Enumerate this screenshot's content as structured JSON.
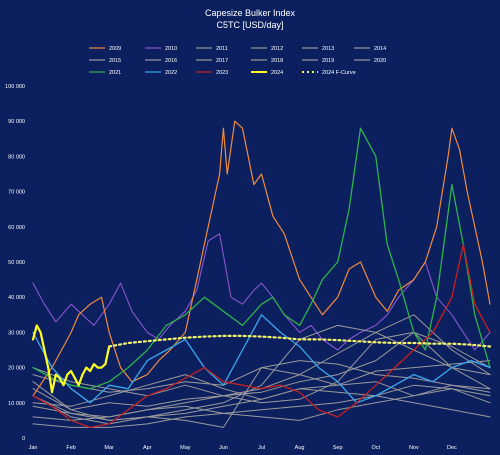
{
  "chart_data": {
    "type": "line",
    "title": "Capesize Bulker Index",
    "subtitle": "C5TC [USD/day]",
    "xlabel": "",
    "ylabel": "",
    "ylim": [
      0,
      100000
    ],
    "y_ticks": [
      0,
      10000,
      20000,
      30000,
      40000,
      50000,
      60000,
      70000,
      80000,
      90000,
      100000
    ],
    "y_tick_labels": [
      "0",
      "10 000",
      "20 000",
      "30 000",
      "40 000",
      "50 000",
      "60 000",
      "70 000",
      "80 000",
      "90 000",
      "100 000"
    ],
    "x_tick_labels": [
      "Jan",
      "Feb",
      "Mar",
      "Apr",
      "May",
      "Jun",
      "Jul",
      "Aug",
      "Sep",
      "Oct",
      "Nov",
      "Dec"
    ],
    "x_unit": "month (0 = start of Jan, 12 = end of Dec)",
    "grid": false,
    "legend_position": "top",
    "series": [
      {
        "name": "2009",
        "color": "#f08a3c",
        "width": 1.2,
        "dash": "",
        "x": [
          0,
          0.5,
          1,
          1.2,
          1.5,
          1.8,
          2,
          2.3,
          2.6,
          3,
          3.3,
          3.6,
          4,
          4.3,
          4.6,
          4.9,
          5,
          5.1,
          5.3,
          5.5,
          5.8,
          6,
          6.3,
          6.6,
          7,
          7.3,
          7.6,
          8,
          8.3,
          8.6,
          9,
          9.3,
          9.6,
          10,
          10.3,
          10.6,
          10.9,
          11,
          11.2,
          11.4,
          11.6,
          11.8,
          12
        ],
        "y": [
          12000,
          20000,
          30000,
          35000,
          38000,
          40000,
          30000,
          20000,
          16000,
          18000,
          22000,
          25000,
          30000,
          45000,
          60000,
          75000,
          88000,
          75000,
          90000,
          88000,
          72000,
          75000,
          63000,
          58000,
          45000,
          40000,
          35000,
          40000,
          48000,
          50000,
          40000,
          36000,
          42000,
          45000,
          50000,
          60000,
          80000,
          88000,
          82000,
          70000,
          60000,
          50000,
          38000
        ]
      },
      {
        "name": "2010",
        "color": "#8a55cf",
        "width": 1.1,
        "dash": "",
        "x": [
          0,
          0.3,
          0.6,
          1,
          1.3,
          1.6,
          2,
          2.3,
          2.6,
          3,
          3.3,
          3.6,
          4,
          4.3,
          4.6,
          4.9,
          5.2,
          5.5,
          5.8,
          6,
          6.3,
          6.6,
          7,
          7.3,
          7.6,
          8,
          8.3,
          8.6,
          9,
          9.3,
          9.6,
          10,
          10.3,
          10.6,
          11,
          11.3,
          11.6,
          12
        ],
        "y": [
          44000,
          38000,
          33000,
          38000,
          35000,
          32000,
          38000,
          44000,
          36000,
          30000,
          28000,
          32000,
          36000,
          42000,
          56000,
          58000,
          40000,
          38000,
          42000,
          44000,
          40000,
          35000,
          30000,
          32000,
          28000,
          25000,
          28000,
          30000,
          32000,
          35000,
          40000,
          45000,
          50000,
          40000,
          35000,
          30000,
          25000,
          30000
        ]
      },
      {
        "name": "2011",
        "color": "#9a9a9a",
        "width": 1,
        "dash": "",
        "x": [
          0,
          1,
          2,
          3,
          4,
          5,
          6,
          7,
          8,
          9,
          10,
          11,
          12
        ],
        "y": [
          14000,
          8000,
          10000,
          9000,
          11000,
          12000,
          13000,
          16000,
          18000,
          22000,
          30000,
          26000,
          20000
        ]
      },
      {
        "name": "2012",
        "color": "#9a9a9a",
        "width": 1,
        "dash": "",
        "x": [
          0,
          1,
          2,
          3,
          4,
          5,
          6,
          7,
          8,
          9,
          10,
          11,
          12
        ],
        "y": [
          12000,
          7000,
          6000,
          8000,
          9000,
          7000,
          6000,
          5000,
          8000,
          10000,
          12000,
          15000,
          13000
        ]
      },
      {
        "name": "2013",
        "color": "#9a9a9a",
        "width": 1,
        "dash": "",
        "x": [
          0,
          1,
          2,
          3,
          4,
          5,
          6,
          7,
          8,
          9,
          10,
          11,
          12
        ],
        "y": [
          6000,
          5000,
          6000,
          8000,
          10000,
          12000,
          14000,
          18000,
          24000,
          30000,
          35000,
          25000,
          18000
        ]
      },
      {
        "name": "2014",
        "color": "#9a9a9a",
        "width": 1,
        "dash": "",
        "x": [
          0,
          1,
          2,
          3,
          4,
          5,
          6,
          7,
          8,
          9,
          10,
          11,
          12
        ],
        "y": [
          20000,
          16000,
          14000,
          12000,
          15000,
          12000,
          10000,
          11000,
          16000,
          28000,
          30000,
          20000,
          14000
        ]
      },
      {
        "name": "2015",
        "color": "#9a9a9a",
        "width": 1,
        "dash": "",
        "x": [
          0,
          1,
          2,
          3,
          4,
          5,
          6,
          7,
          8,
          9,
          10,
          11,
          12
        ],
        "y": [
          9000,
          7000,
          5000,
          6000,
          7000,
          9000,
          11000,
          14000,
          13000,
          12000,
          10000,
          8000,
          6000
        ]
      },
      {
        "name": "2016",
        "color": "#9a9a9a",
        "width": 1,
        "dash": "",
        "x": [
          0,
          1,
          2,
          3,
          4,
          5,
          6,
          7,
          8,
          9,
          10,
          11,
          12
        ],
        "y": [
          4000,
          3000,
          3000,
          4000,
          6000,
          7000,
          8000,
          9000,
          10000,
          12000,
          15000,
          14000,
          12000
        ]
      },
      {
        "name": "2017",
        "color": "#9a9a9a",
        "width": 1,
        "dash": "",
        "x": [
          0,
          1,
          2,
          3,
          4,
          5,
          6,
          7,
          8,
          9,
          10,
          11,
          12
        ],
        "y": [
          10000,
          9000,
          12000,
          15000,
          18000,
          14000,
          11000,
          14000,
          15000,
          19000,
          20000,
          21000,
          22000
        ]
      },
      {
        "name": "2018",
        "color": "#9a9a9a",
        "width": 1,
        "dash": "",
        "x": [
          0,
          1,
          2,
          3,
          4,
          5,
          6,
          7,
          8,
          9,
          10,
          11,
          12
        ],
        "y": [
          18000,
          15000,
          13000,
          14000,
          16000,
          15000,
          20000,
          22000,
          21000,
          18000,
          17000,
          15000,
          14000
        ]
      },
      {
        "name": "2019",
        "color": "#9a9a9a",
        "width": 1,
        "dash": "",
        "x": [
          0,
          1,
          2,
          3,
          4,
          5,
          6,
          7,
          8,
          9,
          10,
          11,
          12
        ],
        "y": [
          16000,
          8000,
          5000,
          6000,
          8000,
          10000,
          15000,
          28000,
          32000,
          30000,
          25000,
          20000,
          18000
        ]
      },
      {
        "name": "2020",
        "color": "#9a9a9a",
        "width": 1,
        "dash": "",
        "x": [
          0,
          1,
          2,
          3,
          4,
          5,
          6,
          7,
          8,
          9,
          10,
          11,
          12
        ],
        "y": [
          12000,
          6000,
          4000,
          6000,
          5000,
          3000,
          20000,
          18000,
          15000,
          16000,
          12000,
          14000,
          10000
        ]
      },
      {
        "name": "2021",
        "color": "#2eb24a",
        "width": 1.3,
        "dash": "",
        "x": [
          0,
          0.5,
          1,
          1.5,
          2,
          2.5,
          3,
          3.5,
          4,
          4.5,
          5,
          5.5,
          6,
          6.3,
          6.6,
          7,
          7.3,
          7.6,
          8,
          8.3,
          8.6,
          9,
          9.3,
          9.6,
          10,
          10.3,
          10.6,
          11,
          11.3,
          11.6,
          12
        ],
        "y": [
          20000,
          17000,
          15000,
          14000,
          16000,
          20000,
          25000,
          32000,
          35000,
          40000,
          36000,
          32000,
          38000,
          40000,
          35000,
          32000,
          38000,
          45000,
          50000,
          65000,
          88000,
          80000,
          55000,
          45000,
          30000,
          25000,
          40000,
          72000,
          55000,
          35000,
          20000
        ]
      },
      {
        "name": "2022",
        "color": "#3aa8ee",
        "width": 1.3,
        "dash": "",
        "x": [
          0,
          0.5,
          1,
          1.5,
          2,
          2.5,
          3,
          3.5,
          4,
          4.5,
          5,
          5.5,
          6,
          6.5,
          7,
          7.5,
          8,
          8.5,
          9,
          9.5,
          10,
          10.5,
          11,
          11.5,
          12
        ],
        "y": [
          30000,
          20000,
          14000,
          10000,
          15000,
          14000,
          22000,
          25000,
          28000,
          20000,
          15000,
          25000,
          35000,
          30000,
          26000,
          20000,
          16000,
          10000,
          12000,
          15000,
          18000,
          16000,
          20000,
          22000,
          20000
        ]
      },
      {
        "name": "2023",
        "color": "#c62020",
        "width": 1.3,
        "dash": "",
        "x": [
          0,
          0.5,
          1,
          1.5,
          2,
          2.5,
          3,
          3.5,
          4,
          4.5,
          5,
          5.5,
          6,
          6.5,
          7,
          7.5,
          8,
          8.5,
          9,
          9.5,
          10,
          10.5,
          11,
          11.3,
          11.6,
          12
        ],
        "y": [
          12000,
          9000,
          5000,
          3000,
          4000,
          8000,
          12000,
          14000,
          17000,
          20000,
          16000,
          15000,
          14000,
          15000,
          13000,
          8000,
          6000,
          10000,
          15000,
          20000,
          25000,
          30000,
          40000,
          55000,
          38000,
          30000
        ]
      },
      {
        "name": "2024",
        "color": "#ffff22",
        "width": 2.2,
        "dash": "",
        "x": [
          0,
          0.1,
          0.2,
          0.3,
          0.4,
          0.5,
          0.6,
          0.7,
          0.8,
          0.9,
          1,
          1.1,
          1.2,
          1.3,
          1.4,
          1.5,
          1.6,
          1.7,
          1.8,
          1.9,
          2
        ],
        "y": [
          28000,
          32000,
          30000,
          25000,
          20000,
          13000,
          18000,
          17000,
          15000,
          18000,
          19000,
          17000,
          15000,
          18000,
          20000,
          19000,
          21000,
          20000,
          20000,
          21000,
          26000
        ]
      },
      {
        "name": "2024 F-Curve",
        "color": "#f5f56a",
        "width": 2.2,
        "dash": "2 3",
        "x": [
          2,
          2.5,
          3,
          3.5,
          4,
          4.5,
          5,
          5.5,
          6,
          6.5,
          7,
          7.5,
          8,
          8.5,
          9,
          9.5,
          10,
          10.5,
          11,
          11.5,
          12
        ],
        "y": [
          26000,
          27000,
          27500,
          28000,
          28500,
          28800,
          29000,
          29000,
          28800,
          28500,
          28000,
          28000,
          27800,
          27500,
          27200,
          27000,
          27000,
          26800,
          26800,
          26500,
          26000
        ]
      }
    ]
  }
}
